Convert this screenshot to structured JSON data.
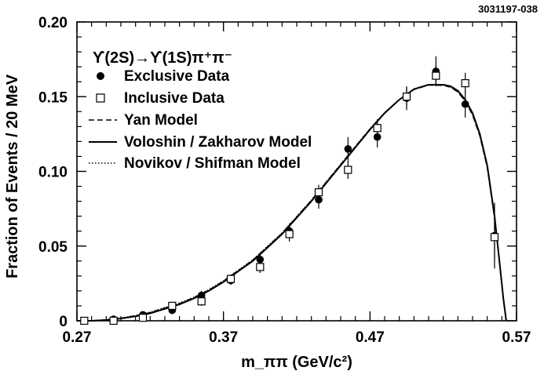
{
  "figure_id": "3031197-038",
  "chart_data": {
    "type": "scatter",
    "title": "",
    "decay_label": "ϒ(2S)→ϒ(1S)π⁺π⁻",
    "xlabel": "m_ππ (GeV/c²)",
    "ylabel": "Fraction of  Events / 20 MeV",
    "xlim": [
      0.27,
      0.57
    ],
    "ylim": [
      0,
      0.2
    ],
    "x_ticks": [
      0.27,
      0.37,
      0.47,
      0.57
    ],
    "x_tick_labels": [
      "0.27",
      "0.37",
      "0.47",
      "0.57"
    ],
    "y_ticks": [
      0,
      0.05,
      0.1,
      0.15,
      0.2
    ],
    "y_tick_labels": [
      "0",
      "0.05",
      "0.10",
      "0.15",
      "0.20"
    ],
    "grid": false,
    "legend_position": "top-left",
    "legend": [
      {
        "label": "Exclusive Data",
        "marker": "filled-circle"
      },
      {
        "label": "Inclusive Data",
        "marker": "open-square"
      },
      {
        "label": "Yan  Model",
        "line": "dashed"
      },
      {
        "label": "Voloshin / Zakharov  Model",
        "line": "solid"
      },
      {
        "label": "Novikov / Shifman  Model",
        "line": "dotted"
      }
    ],
    "series": [
      {
        "name": "Exclusive Data",
        "marker": "filled-circle",
        "points": [
          {
            "x": 0.275,
            "y": 0.0,
            "err": 0.001
          },
          {
            "x": 0.295,
            "y": 0.001,
            "err": 0.002
          },
          {
            "x": 0.315,
            "y": 0.004,
            "err": 0.002
          },
          {
            "x": 0.335,
            "y": 0.007,
            "err": 0.002
          },
          {
            "x": 0.355,
            "y": 0.017,
            "err": 0.003
          },
          {
            "x": 0.375,
            "y": 0.027,
            "err": 0.003
          },
          {
            "x": 0.395,
            "y": 0.041,
            "err": 0.004
          },
          {
            "x": 0.415,
            "y": 0.06,
            "err": 0.005
          },
          {
            "x": 0.435,
            "y": 0.081,
            "err": 0.006
          },
          {
            "x": 0.455,
            "y": 0.115,
            "err": 0.008
          },
          {
            "x": 0.475,
            "y": 0.123,
            "err": 0.007
          },
          {
            "x": 0.495,
            "y": 0.149,
            "err": 0.008
          },
          {
            "x": 0.515,
            "y": 0.167,
            "err": 0.01
          },
          {
            "x": 0.535,
            "y": 0.145,
            "err": 0.009
          },
          {
            "x": 0.555,
            "y": 0.057,
            "err": 0.022
          }
        ]
      },
      {
        "name": "Inclusive Data",
        "marker": "open-square",
        "points": [
          {
            "x": 0.275,
            "y": 0.0,
            "err": 0.001
          },
          {
            "x": 0.295,
            "y": 0.0,
            "err": 0.001
          },
          {
            "x": 0.315,
            "y": 0.002,
            "err": 0.002
          },
          {
            "x": 0.335,
            "y": 0.01,
            "err": 0.002
          },
          {
            "x": 0.355,
            "y": 0.013,
            "err": 0.003
          },
          {
            "x": 0.375,
            "y": 0.028,
            "err": 0.003
          },
          {
            "x": 0.395,
            "y": 0.036,
            "err": 0.004
          },
          {
            "x": 0.415,
            "y": 0.058,
            "err": 0.005
          },
          {
            "x": 0.435,
            "y": 0.086,
            "err": 0.005
          },
          {
            "x": 0.455,
            "y": 0.101,
            "err": 0.006
          },
          {
            "x": 0.475,
            "y": 0.129,
            "err": 0.006
          },
          {
            "x": 0.495,
            "y": 0.15,
            "err": 0.006
          },
          {
            "x": 0.515,
            "y": 0.164,
            "err": 0.007
          },
          {
            "x": 0.535,
            "y": 0.159,
            "err": 0.007
          },
          {
            "x": 0.555,
            "y": 0.056,
            "err": 0.015
          }
        ]
      },
      {
        "name": "Voloshin / Zakharov  Model",
        "line": "solid",
        "x": [
          0.27,
          0.28,
          0.29,
          0.3,
          0.31,
          0.32,
          0.33,
          0.34,
          0.35,
          0.36,
          0.37,
          0.38,
          0.39,
          0.4,
          0.41,
          0.42,
          0.43,
          0.44,
          0.45,
          0.46,
          0.47,
          0.48,
          0.49,
          0.5,
          0.51,
          0.52,
          0.525,
          0.53,
          0.535,
          0.54,
          0.545,
          0.55,
          0.555,
          0.558,
          0.561,
          0.563
        ],
        "y": [
          0.0,
          0.0,
          0.0005,
          0.0015,
          0.003,
          0.005,
          0.008,
          0.011,
          0.015,
          0.02,
          0.026,
          0.033,
          0.04,
          0.049,
          0.058,
          0.069,
          0.08,
          0.092,
          0.104,
          0.116,
          0.128,
          0.139,
          0.148,
          0.155,
          0.158,
          0.158,
          0.157,
          0.154,
          0.148,
          0.139,
          0.125,
          0.104,
          0.07,
          0.043,
          0.015,
          0.0
        ]
      },
      {
        "name": "Yan  Model",
        "line": "dashed",
        "x": [
          0.27,
          0.28,
          0.29,
          0.3,
          0.31,
          0.32,
          0.33,
          0.34,
          0.35,
          0.36,
          0.37,
          0.38,
          0.39,
          0.4,
          0.41,
          0.42,
          0.43,
          0.44,
          0.45,
          0.46,
          0.47,
          0.48,
          0.49,
          0.5,
          0.51,
          0.52,
          0.525,
          0.53,
          0.535,
          0.54,
          0.545,
          0.55,
          0.555,
          0.558,
          0.561,
          0.563
        ],
        "y": [
          0.0,
          0.0,
          0.0006,
          0.0017,
          0.0033,
          0.0055,
          0.0085,
          0.0115,
          0.0155,
          0.0205,
          0.0265,
          0.0335,
          0.0405,
          0.0495,
          0.0585,
          0.0695,
          0.0805,
          0.0925,
          0.1045,
          0.1165,
          0.1283,
          0.1392,
          0.148,
          0.1548,
          0.1578,
          0.1576,
          0.1563,
          0.1532,
          0.147,
          0.1378,
          0.1238,
          0.1028,
          0.069,
          0.0425,
          0.0148,
          0.0
        ]
      },
      {
        "name": "Novikov / Shifman  Model",
        "line": "dotted",
        "x": [
          0.27,
          0.28,
          0.29,
          0.3,
          0.31,
          0.32,
          0.33,
          0.34,
          0.35,
          0.36,
          0.37,
          0.38,
          0.39,
          0.4,
          0.41,
          0.42,
          0.43,
          0.44,
          0.45,
          0.46,
          0.47,
          0.48,
          0.49,
          0.5,
          0.51,
          0.52,
          0.525,
          0.53,
          0.535,
          0.54,
          0.545,
          0.55,
          0.555,
          0.558,
          0.561,
          0.563
        ],
        "y": [
          0.0,
          0.0,
          0.0007,
          0.0018,
          0.0035,
          0.0057,
          0.0088,
          0.0118,
          0.0158,
          0.0208,
          0.0268,
          0.0338,
          0.0408,
          0.0498,
          0.0588,
          0.0698,
          0.0808,
          0.0928,
          0.1048,
          0.1168,
          0.1285,
          0.1393,
          0.1481,
          0.1549,
          0.1579,
          0.1577,
          0.1564,
          0.1533,
          0.1472,
          0.138,
          0.124,
          0.103,
          0.0692,
          0.0427,
          0.015,
          0.0
        ]
      }
    ]
  }
}
